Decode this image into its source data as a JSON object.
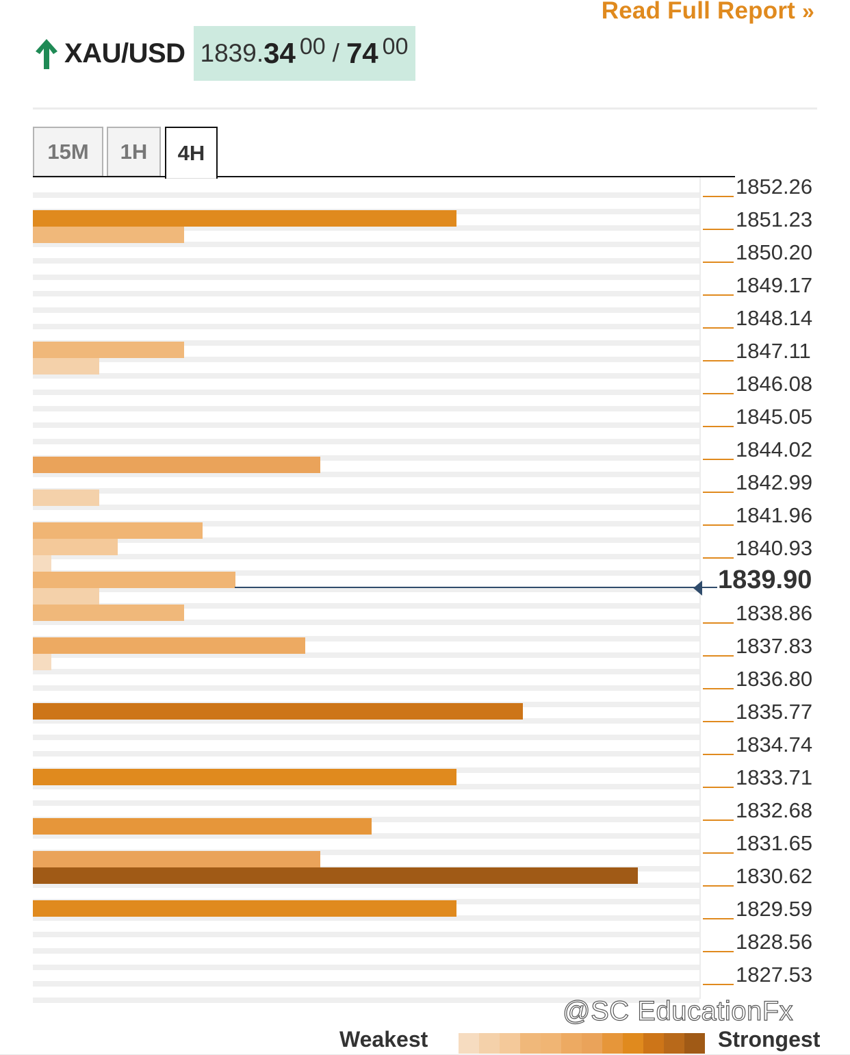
{
  "header": {
    "report_link": "Read Full Report",
    "report_chevron": "»",
    "trend_icon": "arrow-up-icon",
    "symbol": "XAU/USD",
    "bid_prefix": "1839.",
    "bid_big": "34",
    "bid_sup": "00",
    "slash": "/",
    "ask_big": "74",
    "ask_sup": "00"
  },
  "tabs": [
    {
      "label": "15M",
      "active": false
    },
    {
      "label": "1H",
      "active": false
    },
    {
      "label": "4H",
      "active": true
    }
  ],
  "price_levels": [
    "1852.26",
    "1851.23",
    "1850.20",
    "1849.17",
    "1848.14",
    "1847.11",
    "1846.08",
    "1845.05",
    "1844.02",
    "1842.99",
    "1841.96",
    "1840.93",
    "1838.86",
    "1837.83",
    "1836.80",
    "1835.77",
    "1834.74",
    "1833.71",
    "1832.68",
    "1831.65",
    "1830.62",
    "1829.59",
    "1828.56",
    "1827.53"
  ],
  "current_price": "1839.90",
  "confluence_scale_max": 10,
  "confluence_bars": [
    {
      "row": 2,
      "strength": 7,
      "color": "#e08a1e"
    },
    {
      "row": 3,
      "strength": 2.5,
      "color": "#f0b87a"
    },
    {
      "row": 10,
      "strength": 2.5,
      "color": "#f0b87a"
    },
    {
      "row": 11,
      "strength": 1.1,
      "color": "#f4d1aa"
    },
    {
      "row": 17,
      "strength": 4.75,
      "color": "#eaa35a"
    },
    {
      "row": 19,
      "strength": 1.1,
      "color": "#f4d1aa"
    },
    {
      "row": 21,
      "strength": 2.8,
      "color": "#f0b574"
    },
    {
      "row": 22,
      "strength": 1.4,
      "color": "#f4c99a"
    },
    {
      "row": 23,
      "strength": 0.3,
      "color": "#f6dcc0"
    },
    {
      "row": 24,
      "strength": 3.35,
      "color": "#f0b574"
    },
    {
      "row": 25,
      "strength": 1.1,
      "color": "#f4d1aa"
    },
    {
      "row": 26,
      "strength": 2.5,
      "color": "#f0b87a"
    },
    {
      "row": 28,
      "strength": 4.5,
      "color": "#edaa62"
    },
    {
      "row": 29,
      "strength": 0.3,
      "color": "#f6dcc0"
    },
    {
      "row": 32,
      "strength": 8.1,
      "color": "#cd7518"
    },
    {
      "row": 36,
      "strength": 7,
      "color": "#e08a1e"
    },
    {
      "row": 39,
      "strength": 5.6,
      "color": "#e6963a"
    },
    {
      "row": 41,
      "strength": 4.75,
      "color": "#eaa35a"
    },
    {
      "row": 42,
      "strength": 10,
      "color": "#a05a16"
    },
    {
      "row": 44,
      "strength": 7,
      "color": "#e08a1e"
    }
  ],
  "legend": {
    "weakest": "Weakest",
    "strongest": "Strongest",
    "colors": [
      "#f6dcc0",
      "#f4d1aa",
      "#f4c99a",
      "#f0b87a",
      "#f0b574",
      "#edaa62",
      "#eaa35a",
      "#e6963a",
      "#e08a1e",
      "#cd7518",
      "#b8691a",
      "#a05a16"
    ]
  },
  "watermark": "@SC EducationFx"
}
